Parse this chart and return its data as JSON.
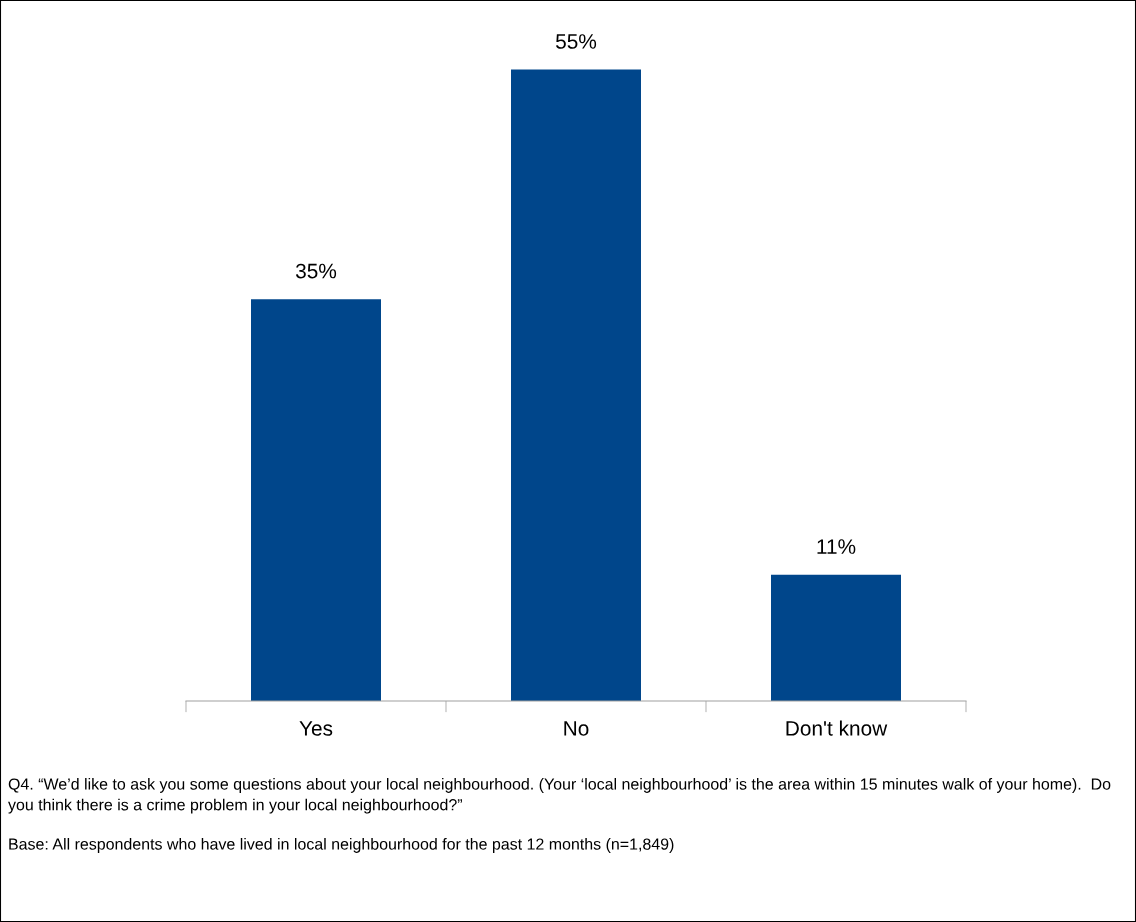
{
  "chart_data": {
    "type": "bar",
    "categories": [
      "Yes",
      "No",
      "Don't know"
    ],
    "values": [
      35,
      55,
      11
    ],
    "value_labels": [
      "35%",
      "55%",
      "11%"
    ],
    "color": "#00468b",
    "grid": false,
    "annotations": [
      "Q4. “We’d like to ask you some questions about your local neighbourhood. (Your ‘local neighbourhood’ is the area within 15 minutes walk of your home).  Do you think there is a crime problem in your local neighbourhood?”",
      "Base: All respondents who have lived in local neighbourhood for the past 12 months (n=1,849)"
    ]
  }
}
